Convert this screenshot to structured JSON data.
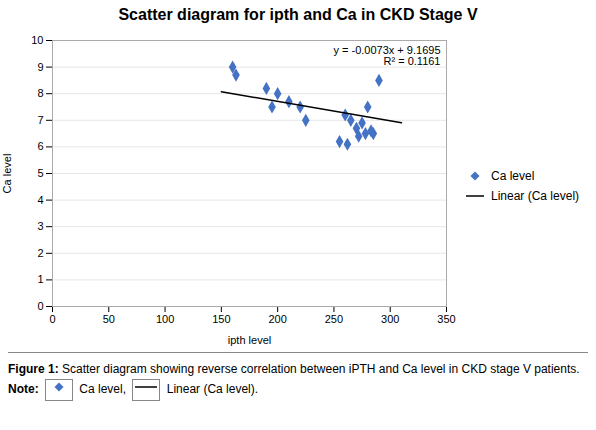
{
  "chart_data": {
    "type": "scatter",
    "title": "Scatter diagram for ipth and Ca in CKD Stage V",
    "x_label": "ipth level",
    "y_label": "Ca level",
    "series": [
      {
        "name": "Ca level",
        "type": "scatter",
        "marker": "diamond",
        "color": "#4472C4",
        "x": [
          160,
          163,
          190,
          195,
          200,
          210,
          220,
          225,
          255,
          260,
          262,
          265,
          270,
          272,
          275,
          278,
          280,
          283,
          285,
          290
        ],
        "values": [
          9.0,
          8.7,
          8.2,
          7.5,
          8.0,
          7.7,
          7.5,
          7.0,
          6.2,
          7.2,
          6.1,
          7.0,
          6.7,
          6.4,
          6.9,
          6.5,
          7.5,
          6.6,
          6.5,
          8.5
        ]
      },
      {
        "name": "Linear (Ca level)",
        "type": "line",
        "line_style": "solid",
        "color": "#000000",
        "x": [
          150,
          310
        ],
        "values": [
          8.0745,
          6.9065
        ]
      }
    ],
    "annotations": [
      "y = -0.0073x + 9.1695",
      "R² = 0.1161"
    ],
    "xlim": [
      0,
      350
    ],
    "ylim": [
      0,
      10
    ],
    "xticks": [
      0,
      50,
      100,
      150,
      200,
      250,
      300,
      350
    ],
    "yticks": [
      0,
      1,
      2,
      3,
      4,
      5,
      6,
      7,
      8,
      9,
      10
    ],
    "grid": "y",
    "legend": "right",
    "caption": {
      "label": "Figure 1:",
      "text": "Scatter diagram showing reverse correlation between iPTH and Ca level in CKD stage V patients.",
      "note": "Note:",
      "entries": [
        "Ca level,",
        "Linear (Ca level)."
      ]
    }
  }
}
